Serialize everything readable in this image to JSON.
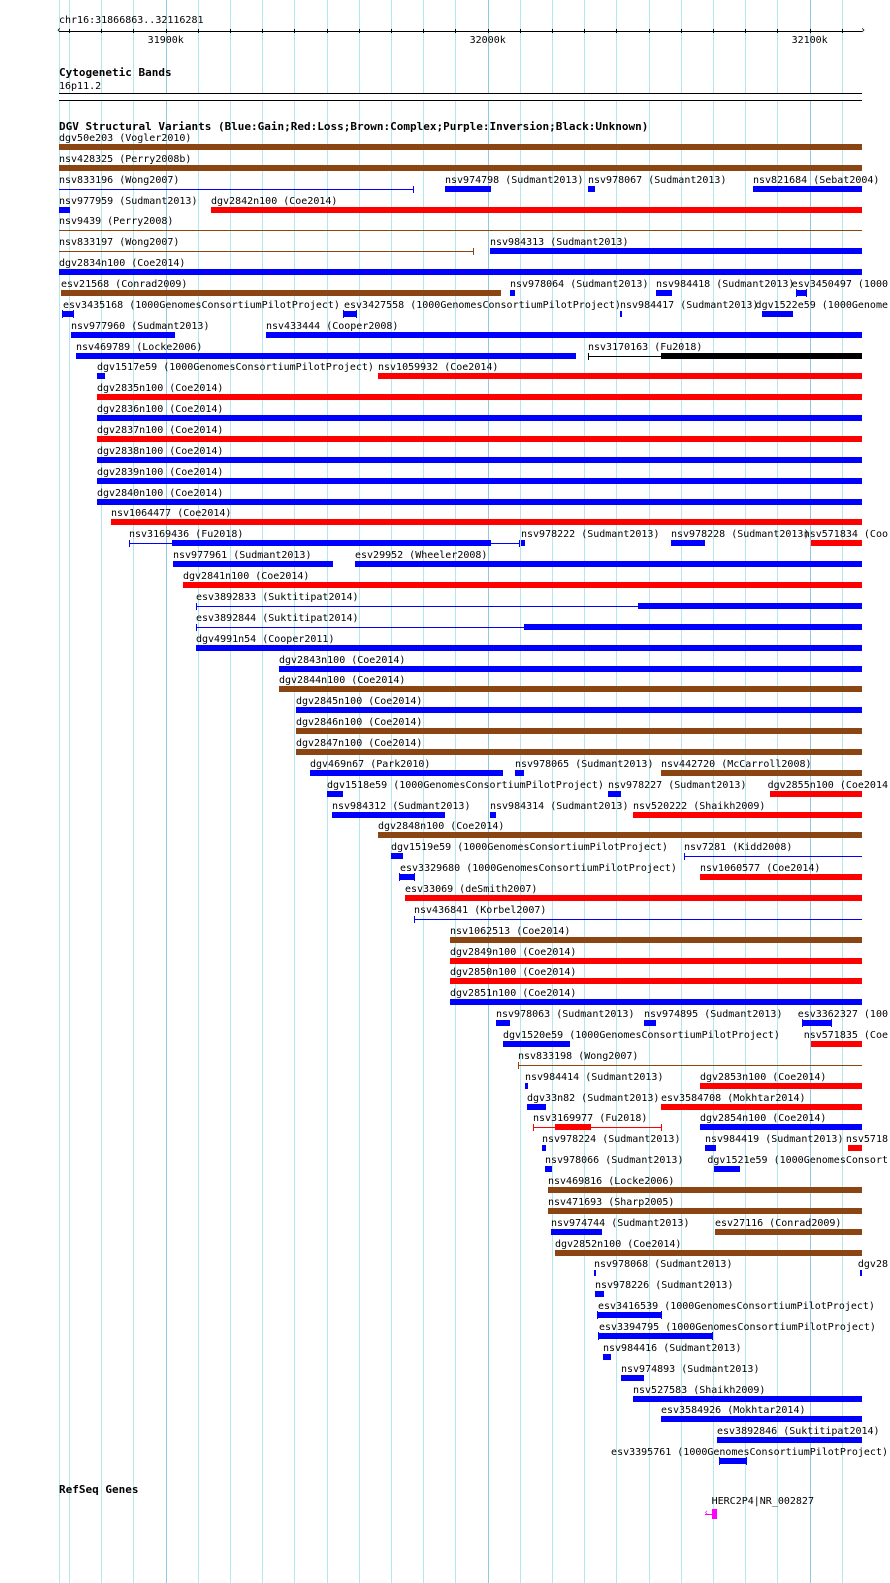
{
  "ruler": {
    "location": "chr16:31866863..32116281",
    "start_bp": 31866863,
    "end_bp": 32116281,
    "tick_labels": [
      {
        "kb": 31900,
        "label": "31900k"
      },
      {
        "kb": 32000,
        "label": "32000k"
      },
      {
        "kb": 32100,
        "label": "32100k"
      }
    ]
  },
  "colors": {
    "B": "#0000ff",
    "R": "#ff0000",
    "N": "#8b4513",
    "K": "#000000",
    "M": "#ff00ff"
  },
  "cytoband": {
    "title": "Cytogenetic Bands",
    "band": "16p11.2"
  },
  "dgv": {
    "title": "DGV Structural Variants (Blue:Gain;Red:Loss;Brown:Complex;Purple:Inversion;Black:Unknown)",
    "rows": [
      [
        {
          "l": "dgv50e203 (Vogler2010)",
          "c": "N",
          "s": 31866.9,
          "e": 32116.3
        }
      ],
      [
        {
          "l": "nsv428325 (Perry2008b)",
          "c": "N",
          "s": 31866.9,
          "e": 32116.3
        }
      ],
      [
        {
          "l": "nsv833196 (Wong2007)",
          "c": "B",
          "s": 31866.9,
          "e": 31977.0,
          "thin": true
        },
        {
          "l": "nsv974798 (Sudmant2013)",
          "c": "B",
          "s": 31986.8,
          "e": 32000.9
        },
        {
          "l": "nsv978067 (Sudmant2013)",
          "c": "B",
          "s": 32031.3,
          "e": 32033.2
        },
        {
          "l": "nsv821684 (Sebat2004)",
          "c": "B",
          "s": 32082.5,
          "e": 32116.3
        }
      ],
      [
        {
          "l": "nsv977959 (Sudmant2013)",
          "c": "B",
          "s": 31866.9,
          "e": 31870.4
        },
        {
          "l": "dgv2842n100 (Coe2014)",
          "c": "R",
          "s": 31914.0,
          "e": 32116.3
        }
      ],
      [
        {
          "l": "nsv9439 (Perry2008)",
          "c": "N",
          "s": 31866.9,
          "e": 32116.3,
          "thin": true
        }
      ],
      [
        {
          "l": "nsv833197 (Wong2007)",
          "c": "N",
          "s": 31866.9,
          "e": 31995.9,
          "thin": true
        },
        {
          "l": "nsv984313 (Sudmant2013)",
          "c": "B",
          "s": 32000.6,
          "e": 32116.3
        }
      ],
      [
        {
          "l": "dgv2834n100 (Coe2014)",
          "c": "B",
          "s": 31866.9,
          "e": 32116.3
        }
      ],
      [
        {
          "l": "esv21568 (Conrad2009)",
          "c": "N",
          "s": 31867.5,
          "e": 32004.3
        },
        {
          "l": "nsv978064 (Sudmant2013)",
          "c": "B",
          "s": 32006.9,
          "e": 32008.4
        },
        {
          "l": "nsv984418 (Sudmant2013)",
          "c": "B",
          "s": 32052.4,
          "e": 32057.4
        },
        {
          "l": "esv3450497 (1000",
          "c": "B",
          "s": 32096.0,
          "e": 32098.8,
          "caps": true
        }
      ],
      [
        {
          "l": "esv3435168 (1000GenomesConsortiumPilotProject)",
          "c": "B",
          "s": 31868.2,
          "e": 31871.3,
          "caps": true
        },
        {
          "l": "esv3427558 (1000GenomesConsortiumPilotProject)",
          "c": "B",
          "s": 31955.4,
          "e": 31959.2,
          "caps": true
        },
        {
          "l": "nsv984417 (Sudmant2013)",
          "c": "B",
          "s": 32041.1,
          "e": 32041.7
        },
        {
          "l": "dgv1522e59 (1000Genome",
          "c": "B",
          "s": 32085.3,
          "e": 32095.0
        }
      ],
      [
        {
          "l": "nsv977960 (Sudmant2013)",
          "c": "B",
          "s": 31870.7,
          "e": 31903.0
        },
        {
          "l": "nsv433444 (Cooper2008)",
          "c": "B",
          "s": 31931.2,
          "e": 32116.3
        }
      ],
      [
        {
          "l": "nsv469789 (Locke2006)",
          "c": "B",
          "s": 31872.2,
          "e": 32027.3
        },
        {
          "l": "nsv3170163 (Fu2018)",
          "c": "K",
          "s": 32031.3,
          "e": 32116.3,
          "thin": true,
          "ts": 32053.9,
          "te": 32116.3
        }
      ],
      [
        {
          "l": "dgv1517e59 (1000GenomesConsortiumPilotProject)",
          "c": "B",
          "s": 31878.8,
          "e": 31881.3
        },
        {
          "l": "nsv1059932 (Coe2014)",
          "c": "R",
          "s": 31966.1,
          "e": 32116.3
        }
      ],
      [
        {
          "l": "dgv2835n100 (Coe2014)",
          "c": "R",
          "s": 31878.8,
          "e": 32116.3
        }
      ],
      [
        {
          "l": "dgv2836n100 (Coe2014)",
          "c": "B",
          "s": 31878.8,
          "e": 32116.3
        }
      ],
      [
        {
          "l": "dgv2837n100 (Coe2014)",
          "c": "R",
          "s": 31878.8,
          "e": 32116.3
        }
      ],
      [
        {
          "l": "dgv2838n100 (Coe2014)",
          "c": "B",
          "s": 31878.8,
          "e": 32116.3
        }
      ],
      [
        {
          "l": "dgv2839n100 (Coe2014)",
          "c": "B",
          "s": 31878.8,
          "e": 32116.3
        }
      ],
      [
        {
          "l": "dgv2840n100 (Coe2014)",
          "c": "B",
          "s": 31878.8,
          "e": 32116.3
        }
      ],
      [
        {
          "l": "nsv1064477 (Coe2014)",
          "c": "R",
          "s": 31882.9,
          "e": 32116.3
        }
      ],
      [
        {
          "l": "nsv3169436 (Fu2018)",
          "c": "B",
          "s": 31888.6,
          "e": 32010.0,
          "thin": true,
          "ts": 31902.0,
          "te": 32000.9
        },
        {
          "l": "nsv978222 (Sudmant2013)",
          "c": "B",
          "s": 32010.3,
          "e": 32011.6
        },
        {
          "l": "nsv978228 (Sudmant2013)",
          "c": "B",
          "s": 32057.1,
          "e": 32067.4
        },
        {
          "l": "nsv571834 (Coo",
          "c": "R",
          "s": 32100.4,
          "e": 32116.3
        }
      ],
      [
        {
          "l": "nsv977961 (Sudmant2013)",
          "c": "B",
          "s": 31902.4,
          "e": 31951.9
        },
        {
          "l": "esv29952 (Wheeler2008)",
          "c": "B",
          "s": 31958.8,
          "e": 32116.3
        }
      ],
      [
        {
          "l": "dgv2841n100 (Coe2014)",
          "c": "R",
          "s": 31905.5,
          "e": 32116.3
        }
      ],
      [
        {
          "l": "esv3892833 (Suktitipat2014)",
          "c": "B",
          "s": 31909.3,
          "e": 32116.3,
          "thin": true,
          "ts": 32046.7,
          "te": 32116.3
        }
      ],
      [
        {
          "l": "esv3892844 (Suktitipat2014)",
          "c": "B",
          "s": 31909.3,
          "e": 32116.3,
          "thin": true,
          "ts": 32011.2,
          "te": 32116.3
        }
      ],
      [
        {
          "l": "dgv4991n54 (Cooper2011)",
          "c": "B",
          "s": 31909.3,
          "e": 32116.3
        }
      ],
      [
        {
          "l": "dgv2843n100 (Coe2014)",
          "c": "B",
          "s": 31935.3,
          "e": 32116.3
        }
      ],
      [
        {
          "l": "dgv2844n100 (Coe2014)",
          "c": "N",
          "s": 31935.3,
          "e": 32116.3
        }
      ],
      [
        {
          "l": "dgv2845n100 (Coe2014)",
          "c": "B",
          "s": 31940.6,
          "e": 32116.3
        }
      ],
      [
        {
          "l": "dgv2846n100 (Coe2014)",
          "c": "N",
          "s": 31940.6,
          "e": 32116.3
        }
      ],
      [
        {
          "l": "dgv2847n100 (Coe2014)",
          "c": "N",
          "s": 31940.6,
          "e": 32116.3
        }
      ],
      [
        {
          "l": "dgv469n67 (Park2010)",
          "c": "B",
          "s": 31944.7,
          "e": 32004.7
        },
        {
          "l": "nsv978065 (Sudmant2013)",
          "c": "B",
          "s": 32008.4,
          "e": 32011.2
        },
        {
          "l": "nsv442720 (McCarroll2008)",
          "c": "N",
          "s": 32053.9,
          "e": 32116.3
        }
      ],
      [
        {
          "l": "dgv1518e59 (1000GenomesConsortiumPilotProject)",
          "c": "B",
          "s": 31950.1,
          "e": 31955.1
        },
        {
          "l": "nsv978227 (Sudmant2013)",
          "c": "B",
          "s": 32037.3,
          "e": 32041.4
        },
        {
          "l": "dgv2855n100 (Coe2014",
          "c": "R",
          "s": 32087.8,
          "e": 32116.3
        }
      ],
      [
        {
          "l": "nsv984312 (Sudmant2013)",
          "c": "B",
          "s": 31951.6,
          "e": 31986.8
        },
        {
          "l": "nsv984314 (Sudmant2013)",
          "c": "B",
          "s": 32000.6,
          "e": 32002.5
        },
        {
          "l": "nsv520222 (Shaikh2009)",
          "c": "R",
          "s": 32045.1,
          "e": 32116.3
        }
      ],
      [
        {
          "l": "dgv2848n100 (Coe2014)",
          "c": "N",
          "s": 31966.1,
          "e": 32116.3
        }
      ],
      [
        {
          "l": "dgv1519e59 (1000GenomesConsortiumPilotProject)",
          "c": "B",
          "s": 31970.1,
          "e": 31973.6
        },
        {
          "l": "nsv7281 (Kidd2008)",
          "c": "B",
          "s": 32061.1,
          "e": 32116.3,
          "thin": true
        }
      ],
      [
        {
          "l": "esv3329680 (1000GenomesConsortiumPilotProject)",
          "c": "B",
          "s": 31972.7,
          "e": 31977.0,
          "caps": true
        },
        {
          "l": "nsv1060577 (Coe2014)",
          "c": "R",
          "s": 32065.9,
          "e": 32116.3
        }
      ],
      [
        {
          "l": "esv33069 (deSmith2007)",
          "c": "R",
          "s": 31974.2,
          "e": 32116.3
        }
      ],
      [
        {
          "l": "nsv436841 (Korbel2007)",
          "c": "B",
          "s": 31977.0,
          "e": 32116.3,
          "thin": true
        }
      ],
      [
        {
          "l": "nsv1062513 (Coe2014)",
          "c": "N",
          "s": 31988.3,
          "e": 32116.3
        }
      ],
      [
        {
          "l": "dgv2849n100 (Coe2014)",
          "c": "R",
          "s": 31988.3,
          "e": 32116.3
        }
      ],
      [
        {
          "l": "dgv2850n100 (Coe2014)",
          "c": "R",
          "s": 31988.3,
          "e": 32116.3
        }
      ],
      [
        {
          "l": "dgv2851n100 (Coe2014)",
          "c": "B",
          "s": 31988.3,
          "e": 32116.3
        }
      ],
      [
        {
          "l": "nsv978063 (Sudmant2013)",
          "c": "B",
          "s": 32002.5,
          "e": 32006.9
        },
        {
          "l": "nsv974895 (Sudmant2013)",
          "c": "B",
          "s": 32048.6,
          "e": 32052.4
        },
        {
          "l": "esv3362327 (100",
          "c": "B",
          "s": 32097.9,
          "e": 32106.6,
          "caps": true
        }
      ],
      [
        {
          "l": "dgv1520e59 (1000GenomesConsortiumPilotProject)",
          "c": "B",
          "s": 32004.7,
          "e": 32025.7
        },
        {
          "l": "nsv571835 (Coe",
          "c": "R",
          "s": 32100.4,
          "e": 32116.3
        }
      ],
      [
        {
          "l": "nsv833198 (Wong2007)",
          "c": "N",
          "s": 32009.4,
          "e": 32116.3,
          "thin": true
        }
      ],
      [
        {
          "l": "nsv984414 (Sudmant2013)",
          "c": "B",
          "s": 32011.6,
          "e": 32012.5
        },
        {
          "l": "dgv2853n100 (Coe2014)",
          "c": "R",
          "s": 32065.9,
          "e": 32116.3
        }
      ],
      [
        {
          "l": "dgv33n82 (Sudmant2013)",
          "c": "B",
          "s": 32012.2,
          "e": 32018.2
        },
        {
          "l": "esv3584708 (Mokhtar2014)",
          "c": "R",
          "s": 32053.9,
          "e": 32116.3
        }
      ],
      [
        {
          "l": "nsv3169977 (Fu2018)",
          "c": "R",
          "s": 32014.1,
          "e": 32054.2,
          "thin": true,
          "ts": 32021.0,
          "te": 32032.0
        },
        {
          "l": "dgv2854n100 (Coe2014)",
          "c": "B",
          "s": 32065.9,
          "e": 32116.3
        }
      ],
      [
        {
          "l": "nsv978224 (Sudmant2013)",
          "c": "B",
          "s": 32016.9,
          "e": 32018.2
        },
        {
          "l": "nsv984419 (Sudmant2013)",
          "c": "B",
          "s": 32067.4,
          "e": 32070.9
        },
        {
          "l": "nsv5718",
          "c": "R",
          "s": 32112.0,
          "e": 32116.3
        }
      ],
      [
        {
          "l": "nsv978066 (Sudmant2013)",
          "c": "B",
          "s": 32017.8,
          "e": 32020.0
        },
        {
          "l": "dgv1521e59 (1000GenomesConsort",
          "c": "B",
          "s": 32070.2,
          "e": 32078.4
        }
      ],
      [
        {
          "l": "nsv469816 (Locke2006)",
          "c": "N",
          "s": 32018.8,
          "e": 32116.3
        }
      ],
      [
        {
          "l": "nsv471693 (Sharp2005)",
          "c": "N",
          "s": 32018.8,
          "e": 32116.3
        }
      ],
      [
        {
          "l": "nsv974744 (Sudmant2013)",
          "c": "B",
          "s": 32019.7,
          "e": 32035.4
        },
        {
          "l": "esv27116 (Conrad2009)",
          "c": "N",
          "s": 32070.6,
          "e": 32116.3
        }
      ],
      [
        {
          "l": "dgv2852n100 (Coe2014)",
          "c": "N",
          "s": 32021.0,
          "e": 32116.3
        }
      ],
      [
        {
          "l": "nsv978068 (Sudmant2013)",
          "c": "B",
          "s": 32032.9,
          "e": 32033.5
        },
        {
          "l": "dgv28",
          "c": "B",
          "s": 32115.7,
          "e": 32116.1
        }
      ],
      [
        {
          "l": "nsv978226 (Sudmant2013)",
          "c": "B",
          "s": 32033.5,
          "e": 32036.0
        }
      ],
      [
        {
          "l": "esv3416539 (1000GenomesConsortiumPilotProject)",
          "c": "B",
          "s": 32034.2,
          "e": 32053.9,
          "caps": true
        }
      ],
      [
        {
          "l": "esv3394795 (1000GenomesConsortiumPilotProject)",
          "c": "B",
          "s": 32034.5,
          "e": 32069.6,
          "caps": true
        }
      ],
      [
        {
          "l": "nsv984416 (Sudmant2013)",
          "c": "B",
          "s": 32035.7,
          "e": 32038.2
        }
      ],
      [
        {
          "l": "nsv974893 (Sudmant2013)",
          "c": "B",
          "s": 32041.4,
          "e": 32048.6
        }
      ],
      [
        {
          "l": "nsv527583 (Shaikh2009)",
          "c": "B",
          "s": 32045.1,
          "e": 32116.3
        }
      ],
      [
        {
          "l": "esv3584926 (Mokhtar2014)",
          "c": "B",
          "s": 32053.9,
          "e": 32116.3
        }
      ],
      [
        {
          "l": "esv3892846 (Suktitipat2014)",
          "c": "B",
          "s": 32071.2,
          "e": 32116.3
        }
      ],
      [
        {
          "l": "esv3395761 (1000GenomesConsortiumPilotProject)",
          "c": "B",
          "s": 32072.1,
          "e": 32080.3,
          "caps": true
        }
      ]
    ]
  },
  "refseq": {
    "title": "RefSeq Genes",
    "genes": [
      {
        "l": "HERC2P4|NR_002827",
        "s": 32067.4,
        "e": 32071.2,
        "strand": "-"
      }
    ]
  }
}
